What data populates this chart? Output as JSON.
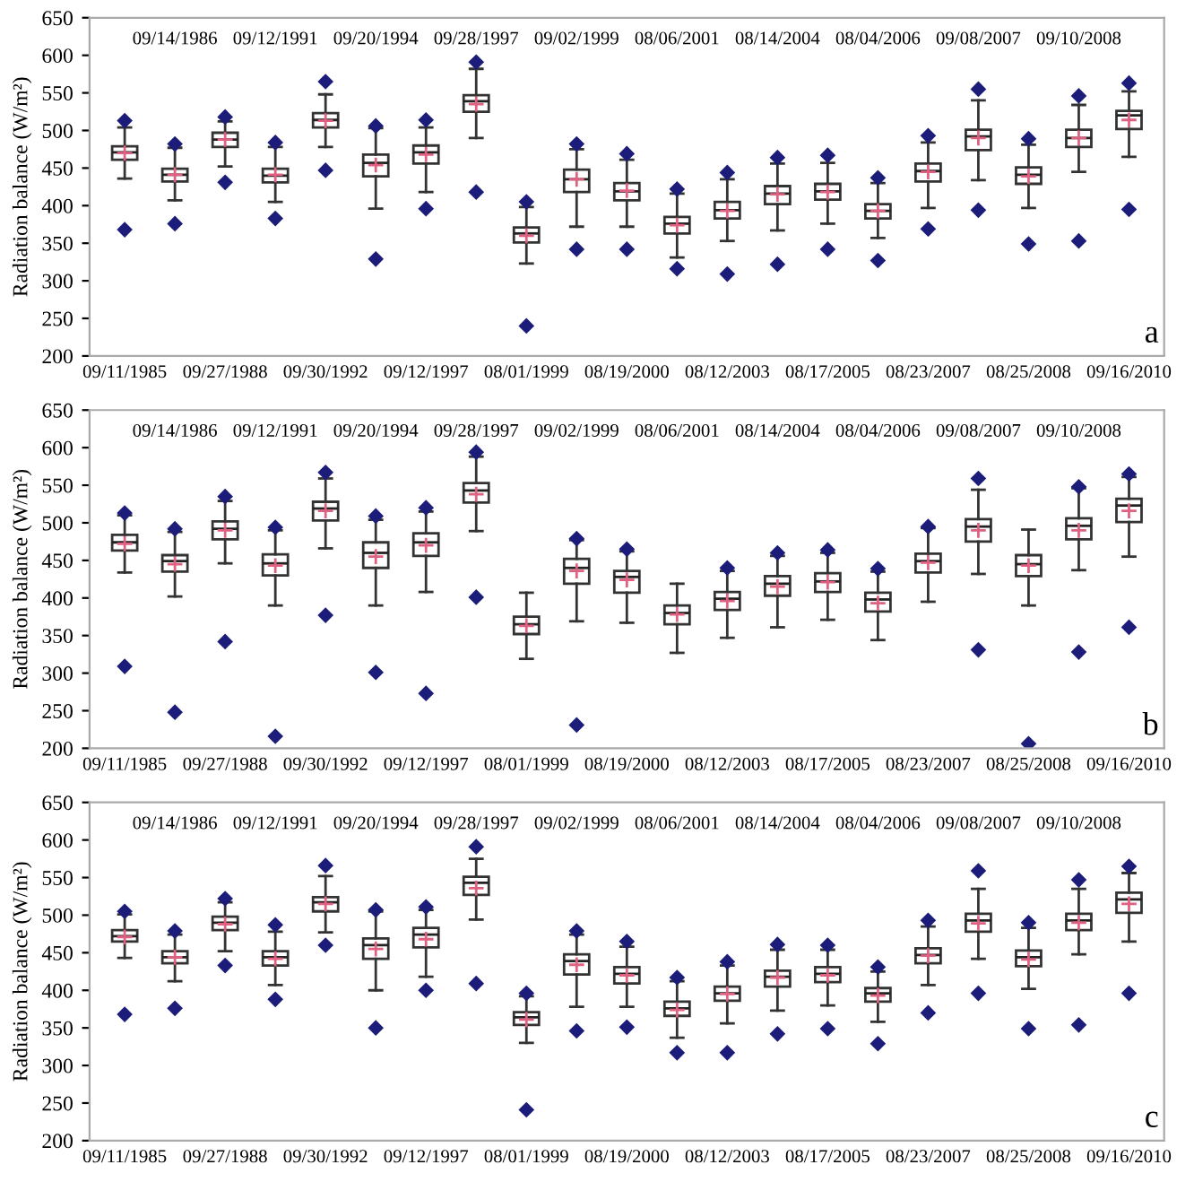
{
  "chart_data": [
    {
      "type": "box",
      "ylabel": "Radiation balance (W/m²)",
      "ylim": [
        200,
        650
      ],
      "yticks": [
        200,
        250,
        300,
        350,
        400,
        450,
        500,
        550,
        600,
        650
      ],
      "grid": false,
      "annotations": [
        "a"
      ],
      "categories": [
        "09/11/1985",
        "09/14/1986",
        "09/27/1988",
        "09/12/1991",
        "09/30/1992",
        "09/20/1994",
        "09/12/1997",
        "09/28/1997",
        "08/01/1999",
        "09/02/1999",
        "08/19/2000",
        "08/06/2001",
        "08/12/2003",
        "08/14/2004",
        "08/17/2005",
        "08/04/2006",
        "08/23/2007",
        "09/08/2007",
        "08/25/2008",
        "09/10/2008",
        "09/16/2010"
      ],
      "boxes": [
        {
          "low": 436,
          "q1": 461,
          "median": 471,
          "q3": 479,
          "high": 504,
          "mean": 470,
          "outliers": [
            513,
            368
          ]
        },
        {
          "low": 407,
          "q1": 432,
          "median": 441,
          "q3": 449,
          "high": 477,
          "mean": 441,
          "outliers": [
            482,
            376
          ]
        },
        {
          "low": 452,
          "q1": 478,
          "median": 488,
          "q3": 497,
          "high": 512,
          "mean": 488,
          "outliers": [
            518,
            431
          ]
        },
        {
          "low": 405,
          "q1": 431,
          "median": 440,
          "q3": 449,
          "high": 478,
          "mean": 441,
          "outliers": [
            484,
            383
          ]
        },
        {
          "low": 478,
          "q1": 504,
          "median": 514,
          "q3": 523,
          "high": 548,
          "mean": 513,
          "outliers": [
            565,
            447
          ]
        },
        {
          "low": 396,
          "q1": 439,
          "median": 457,
          "q3": 468,
          "high": 503,
          "mean": 454,
          "outliers": [
            506,
            329
          ]
        },
        {
          "low": 418,
          "q1": 456,
          "median": 471,
          "q3": 480,
          "high": 504,
          "mean": 468,
          "outliers": [
            514,
            396
          ]
        },
        {
          "low": 490,
          "q1": 525,
          "median": 539,
          "q3": 547,
          "high": 582,
          "mean": 535,
          "outliers": [
            591,
            418
          ]
        },
        {
          "low": 323,
          "q1": 351,
          "median": 363,
          "q3": 371,
          "high": 398,
          "mean": 360,
          "outliers": [
            405,
            240
          ]
        },
        {
          "low": 372,
          "q1": 418,
          "median": 435,
          "q3": 448,
          "high": 475,
          "mean": 435,
          "outliers": [
            482,
            342
          ]
        },
        {
          "low": 372,
          "q1": 407,
          "median": 419,
          "q3": 430,
          "high": 461,
          "mean": 420,
          "outliers": [
            469,
            342
          ]
        },
        {
          "low": 331,
          "q1": 363,
          "median": 376,
          "q3": 385,
          "high": 416,
          "mean": 374,
          "outliers": [
            422,
            316
          ]
        },
        {
          "low": 353,
          "q1": 383,
          "median": 394,
          "q3": 405,
          "high": 435,
          "mean": 393,
          "outliers": [
            444,
            309
          ]
        },
        {
          "low": 367,
          "q1": 402,
          "median": 416,
          "q3": 426,
          "high": 456,
          "mean": 415,
          "outliers": [
            464,
            322
          ]
        },
        {
          "low": 376,
          "q1": 408,
          "median": 419,
          "q3": 429,
          "high": 457,
          "mean": 418,
          "outliers": [
            467,
            342
          ]
        },
        {
          "low": 357,
          "q1": 383,
          "median": 393,
          "q3": 402,
          "high": 430,
          "mean": 393,
          "outliers": [
            437,
            327
          ]
        },
        {
          "low": 397,
          "q1": 432,
          "median": 446,
          "q3": 456,
          "high": 484,
          "mean": 445,
          "outliers": [
            493,
            369
          ]
        },
        {
          "low": 434,
          "q1": 474,
          "median": 492,
          "q3": 501,
          "high": 540,
          "mean": 490,
          "outliers": [
            555,
            394
          ]
        },
        {
          "low": 397,
          "q1": 429,
          "median": 441,
          "q3": 451,
          "high": 481,
          "mean": 439,
          "outliers": [
            489,
            349
          ]
        },
        {
          "low": 445,
          "q1": 478,
          "median": 490,
          "q3": 501,
          "high": 534,
          "mean": 490,
          "outliers": [
            546,
            353
          ]
        },
        {
          "low": 465,
          "q1": 502,
          "median": 520,
          "q3": 526,
          "high": 552,
          "mean": 514,
          "outliers": [
            563,
            395
          ]
        }
      ]
    },
    {
      "type": "box",
      "ylabel": "Radiation balance (W/m²)",
      "ylim": [
        200,
        650
      ],
      "yticks": [
        200,
        250,
        300,
        350,
        400,
        450,
        500,
        550,
        600,
        650
      ],
      "grid": false,
      "annotations": [
        "b"
      ],
      "categories": [
        "09/11/1985",
        "09/14/1986",
        "09/27/1988",
        "09/12/1991",
        "09/30/1992",
        "09/20/1994",
        "09/12/1997",
        "09/28/1997",
        "08/01/1999",
        "09/02/1999",
        "08/19/2000",
        "08/06/2001",
        "08/12/2003",
        "08/14/2004",
        "08/17/2005",
        "08/04/2006",
        "08/23/2007",
        "09/08/2007",
        "08/25/2008",
        "09/10/2008",
        "09/16/2010"
      ],
      "boxes": [
        {
          "low": 434,
          "q1": 463,
          "median": 474,
          "q3": 484,
          "high": 510,
          "mean": 472,
          "outliers": [
            513,
            309
          ]
        },
        {
          "low": 402,
          "q1": 435,
          "median": 449,
          "q3": 457,
          "high": 488,
          "mean": 445,
          "outliers": [
            492,
            248
          ]
        },
        {
          "low": 446,
          "q1": 478,
          "median": 492,
          "q3": 502,
          "high": 529,
          "mean": 490,
          "outliers": [
            535,
            342
          ]
        },
        {
          "low": 390,
          "q1": 430,
          "median": 446,
          "q3": 458,
          "high": 490,
          "mean": 443,
          "outliers": [
            494,
            216
          ]
        },
        {
          "low": 466,
          "q1": 503,
          "median": 519,
          "q3": 528,
          "high": 559,
          "mean": 516,
          "outliers": [
            567,
            377
          ]
        },
        {
          "low": 390,
          "q1": 440,
          "median": 460,
          "q3": 474,
          "high": 504,
          "mean": 455,
          "outliers": [
            509,
            301
          ]
        },
        {
          "low": 408,
          "q1": 456,
          "median": 474,
          "q3": 486,
          "high": 515,
          "mean": 470,
          "outliers": [
            520,
            273
          ]
        },
        {
          "low": 489,
          "q1": 527,
          "median": 543,
          "q3": 553,
          "high": 588,
          "mean": 538,
          "outliers": [
            594,
            401
          ]
        },
        {
          "low": 319,
          "q1": 352,
          "median": 365,
          "q3": 375,
          "high": 407,
          "mean": 363
        },
        {
          "low": 369,
          "q1": 419,
          "median": 440,
          "q3": 452,
          "high": 477,
          "mean": 436,
          "outliers": [
            479,
            231
          ]
        },
        {
          "low": 367,
          "q1": 407,
          "median": 428,
          "q3": 436,
          "high": 462,
          "mean": 424,
          "outliers": [
            465
          ]
        },
        {
          "low": 327,
          "q1": 365,
          "median": 380,
          "q3": 390,
          "high": 419,
          "mean": 378
        },
        {
          "low": 347,
          "q1": 384,
          "median": 399,
          "q3": 408,
          "high": 436,
          "mean": 396,
          "outliers": [
            440
          ]
        },
        {
          "low": 361,
          "q1": 403,
          "median": 419,
          "q3": 429,
          "high": 456,
          "mean": 415,
          "outliers": [
            460
          ]
        },
        {
          "low": 371,
          "q1": 408,
          "median": 422,
          "q3": 433,
          "high": 460,
          "mean": 421,
          "outliers": [
            464
          ]
        },
        {
          "low": 344,
          "q1": 382,
          "median": 398,
          "q3": 407,
          "high": 435,
          "mean": 393,
          "outliers": [
            439
          ]
        },
        {
          "low": 395,
          "q1": 434,
          "median": 449,
          "q3": 459,
          "high": 493,
          "mean": 447,
          "outliers": [
            495
          ]
        },
        {
          "low": 432,
          "q1": 475,
          "median": 495,
          "q3": 505,
          "high": 544,
          "mean": 490,
          "outliers": [
            559,
            331
          ]
        },
        {
          "low": 390,
          "q1": 429,
          "median": 445,
          "q3": 457,
          "high": 491,
          "mean": 443,
          "outliers": [
            206
          ]
        },
        {
          "low": 437,
          "q1": 478,
          "median": 496,
          "q3": 506,
          "high": 546,
          "mean": 490,
          "outliers": [
            548,
            328
          ]
        },
        {
          "low": 455,
          "q1": 501,
          "median": 523,
          "q3": 532,
          "high": 561,
          "mean": 516,
          "outliers": [
            565,
            361
          ]
        }
      ]
    },
    {
      "type": "box",
      "ylabel": "Radiation balance (W/m²)",
      "ylim": [
        200,
        650
      ],
      "yticks": [
        200,
        250,
        300,
        350,
        400,
        450,
        500,
        550,
        600,
        650
      ],
      "grid": false,
      "annotations": [
        "c"
      ],
      "categories": [
        "09/11/1985",
        "09/14/1986",
        "09/27/1988",
        "09/12/1991",
        "09/30/1992",
        "09/20/1994",
        "09/12/1997",
        "09/28/1997",
        "08/01/1999",
        "09/02/1999",
        "08/19/2000",
        "08/06/2001",
        "08/12/2003",
        "08/14/2004",
        "08/17/2005",
        "08/04/2006",
        "08/23/2007",
        "09/08/2007",
        "08/25/2008",
        "09/10/2008",
        "09/16/2010"
      ],
      "boxes": [
        {
          "low": 443,
          "q1": 465,
          "median": 472,
          "q3": 480,
          "high": 501,
          "mean": 471,
          "outliers": [
            505,
            368
          ]
        },
        {
          "low": 412,
          "q1": 436,
          "median": 444,
          "q3": 452,
          "high": 474,
          "mean": 444,
          "outliers": [
            479,
            376
          ]
        },
        {
          "low": 452,
          "q1": 480,
          "median": 490,
          "q3": 498,
          "high": 517,
          "mean": 488,
          "outliers": [
            522,
            433
          ]
        },
        {
          "low": 407,
          "q1": 433,
          "median": 444,
          "q3": 452,
          "high": 478,
          "mean": 442,
          "outliers": [
            487,
            388
          ]
        },
        {
          "low": 477,
          "q1": 505,
          "median": 517,
          "q3": 524,
          "high": 552,
          "mean": 515,
          "outliers": [
            566,
            460
          ]
        },
        {
          "low": 400,
          "q1": 442,
          "median": 460,
          "q3": 469,
          "high": 505,
          "mean": 455,
          "outliers": [
            507,
            350
          ]
        },
        {
          "low": 418,
          "q1": 457,
          "median": 474,
          "q3": 483,
          "high": 507,
          "mean": 468,
          "outliers": [
            511,
            400
          ]
        },
        {
          "low": 494,
          "q1": 527,
          "median": 543,
          "q3": 551,
          "high": 575,
          "mean": 536,
          "outliers": [
            591,
            409
          ]
        },
        {
          "low": 330,
          "q1": 354,
          "median": 364,
          "q3": 371,
          "high": 392,
          "mean": 361,
          "outliers": [
            396,
            241
          ]
        },
        {
          "low": 378,
          "q1": 421,
          "median": 439,
          "q3": 448,
          "high": 474,
          "mean": 434,
          "outliers": [
            479,
            346
          ]
        },
        {
          "low": 378,
          "q1": 409,
          "median": 422,
          "q3": 431,
          "high": 458,
          "mean": 420,
          "outliers": [
            465,
            351
          ]
        },
        {
          "low": 337,
          "q1": 366,
          "median": 376,
          "q3": 385,
          "high": 412,
          "mean": 374,
          "outliers": [
            417,
            317
          ]
        },
        {
          "low": 356,
          "q1": 386,
          "median": 396,
          "q3": 405,
          "high": 433,
          "mean": 395,
          "outliers": [
            438,
            317
          ]
        },
        {
          "low": 373,
          "q1": 405,
          "median": 418,
          "q3": 426,
          "high": 454,
          "mean": 417,
          "outliers": [
            461,
            342
          ]
        },
        {
          "low": 380,
          "q1": 411,
          "median": 422,
          "q3": 431,
          "high": 454,
          "mean": 420,
          "outliers": [
            460,
            349
          ]
        },
        {
          "low": 358,
          "q1": 385,
          "median": 396,
          "q3": 403,
          "high": 425,
          "mean": 393,
          "outliers": [
            431,
            329
          ]
        },
        {
          "low": 407,
          "q1": 436,
          "median": 447,
          "q3": 456,
          "high": 485,
          "mean": 446,
          "outliers": [
            493,
            370
          ]
        },
        {
          "low": 442,
          "q1": 478,
          "median": 493,
          "q3": 502,
          "high": 535,
          "mean": 489,
          "outliers": [
            559,
            396
          ]
        },
        {
          "low": 402,
          "q1": 432,
          "median": 444,
          "q3": 453,
          "high": 483,
          "mean": 441,
          "outliers": [
            490,
            349
          ]
        },
        {
          "low": 448,
          "q1": 480,
          "median": 493,
          "q3": 502,
          "high": 535,
          "mean": 490,
          "outliers": [
            547,
            354
          ]
        },
        {
          "low": 465,
          "q1": 503,
          "median": 521,
          "q3": 530,
          "high": 556,
          "mean": 515,
          "outliers": [
            565,
            396
          ]
        }
      ]
    }
  ]
}
